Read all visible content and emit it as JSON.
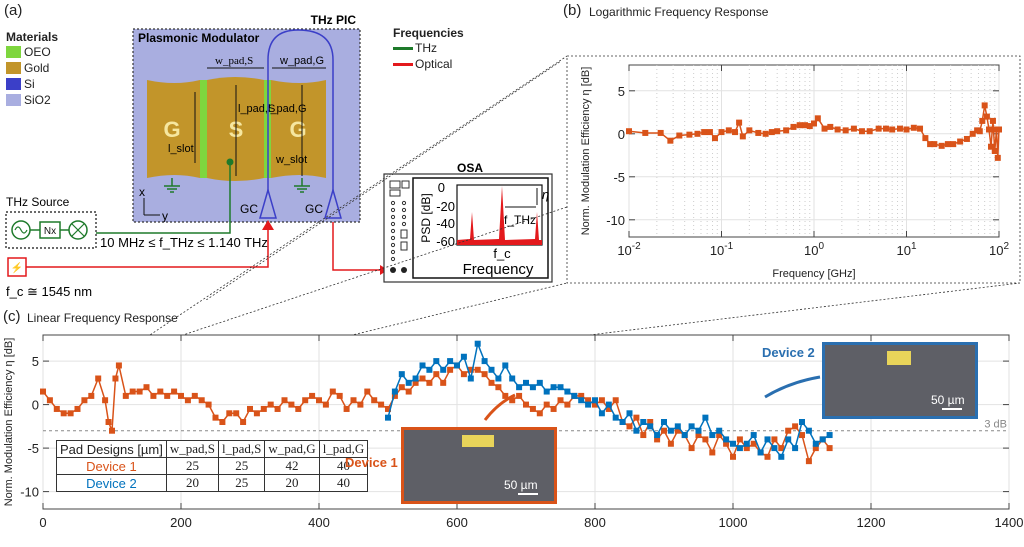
{
  "panel_a": {
    "letter": "(a)",
    "materials_title": "Materials",
    "materials": [
      {
        "name": "OEO",
        "color": "#7ed63e"
      },
      {
        "name": "Gold",
        "color": "#c2952a"
      },
      {
        "name": "Si",
        "color": "#3b3fc8"
      },
      {
        "name": "SiO2",
        "color": "#a9aee0"
      }
    ],
    "frequencies_title": "Frequencies",
    "frequencies": [
      {
        "name": "THz",
        "color": "#1e7a2a"
      },
      {
        "name": "Optical",
        "color": "#e3191c"
      }
    ],
    "pic_label": "THz PIC",
    "modulator_label": "Plasmonic Modulator",
    "electrodes": [
      "G",
      "S",
      "G"
    ],
    "dim_labels": {
      "w_pad_s": "w_pad,S",
      "w_pad_g": "w_pad,G",
      "l_pad_s": "l_pad,S",
      "l_pad_g": "l_pad,G",
      "l_slot": "l_slot",
      "w_slot": "w_slot"
    },
    "gc_label": "GC",
    "axis_x": "x",
    "axis_y": "y",
    "thz_source_label": "THz Source",
    "multiplier_label": "Nx",
    "freq_range": "10 MHz ≤ f_THz ≤ 1.140 THz",
    "carrier_label": "f_c ≅ 1545 nm",
    "osa": {
      "title": "OSA",
      "ylabel": "PSD [dB]",
      "yticks": [
        "0",
        "-20",
        "-40",
        "-60"
      ],
      "xlabel": "Frequency",
      "fc_label": "f_c",
      "fthz_label": "f_THz",
      "eta_label": "η"
    }
  },
  "chart_data": [
    {
      "id": "b",
      "type": "line",
      "title": "Logarithmic Frequency Response",
      "panel_letter": "(b)",
      "xlabel": "Frequency [GHz]",
      "ylabel": "Norm. Modulation Efficiency η [dB]",
      "xscale": "log",
      "xlim": [
        0.01,
        100
      ],
      "ylim": [
        -12,
        8
      ],
      "xticks": [
        0.01,
        0.1,
        1,
        10,
        100
      ],
      "xtick_labels": [
        "10-2",
        "10-1",
        "100",
        "101",
        "102"
      ],
      "yticks": [
        5,
        0,
        -5,
        -10
      ],
      "grid": true,
      "series": [
        {
          "name": "Device 1",
          "color": "#d95319",
          "x": [
            0.01,
            0.015,
            0.022,
            0.028,
            0.035,
            0.045,
            0.055,
            0.065,
            0.075,
            0.085,
            0.1,
            0.12,
            0.14,
            0.155,
            0.17,
            0.2,
            0.25,
            0.3,
            0.35,
            0.4,
            0.5,
            0.6,
            0.7,
            0.8,
            0.9,
            1.0,
            1.1,
            1.3,
            1.5,
            1.8,
            2.2,
            2.7,
            3.3,
            4,
            5,
            6,
            7,
            8.5,
            10,
            12,
            14,
            16,
            18,
            20,
            24,
            28,
            32,
            38,
            45,
            52,
            58,
            62,
            66,
            70,
            74,
            78,
            82,
            86,
            90,
            94,
            97,
            100
          ],
          "y": [
            0.3,
            0.1,
            0.1,
            -0.8,
            -0.2,
            -0.1,
            0.0,
            0.2,
            0.2,
            -0.5,
            0.2,
            0.4,
            0.2,
            1.3,
            -0.3,
            0.4,
            0.1,
            0.0,
            0.2,
            0.3,
            0.4,
            0.8,
            1.0,
            1.0,
            0.9,
            1.2,
            1.8,
            0.6,
            0.8,
            0.5,
            0.4,
            0.6,
            0.3,
            0.3,
            0.6,
            0.6,
            0.5,
            0.6,
            0.5,
            0.7,
            0.6,
            -0.5,
            -1.2,
            -1.2,
            -1.4,
            -1.2,
            -1.2,
            -0.9,
            -0.6,
            0.0,
            0.4,
            0.3,
            1.5,
            3.3,
            2.0,
            0.5,
            -1.5,
            1.5,
            -2.0,
            0.5,
            -2.8,
            0.5
          ]
        }
      ]
    },
    {
      "id": "c",
      "type": "line",
      "title": "Linear Frequency Response",
      "panel_letter": "(c)",
      "xlabel": "Frequency [GHz]",
      "ylabel": "Norm. Modulation Efficiency η [dB]",
      "xlim": [
        0,
        1400
      ],
      "ylim": [
        -12,
        8
      ],
      "xticks": [
        0,
        200,
        400,
        600,
        800,
        1000,
        1200,
        1400
      ],
      "yticks": [
        5,
        0,
        -5,
        -10
      ],
      "grid": true,
      "reference_line": {
        "y": -3,
        "label": "3 dB"
      },
      "annotations": [
        "Device 1",
        "Device 2"
      ],
      "scale_bar_label": "50 µm",
      "series": [
        {
          "name": "Device 1",
          "color": "#d95319",
          "x": [
            0,
            10,
            20,
            30,
            40,
            50,
            60,
            70,
            80,
            90,
            95,
            100,
            105,
            110,
            120,
            130,
            140,
            150,
            160,
            170,
            180,
            190,
            200,
            210,
            220,
            230,
            240,
            250,
            260,
            270,
            280,
            290,
            300,
            310,
            320,
            330,
            340,
            350,
            360,
            370,
            380,
            390,
            400,
            410,
            420,
            430,
            440,
            450,
            460,
            470,
            480,
            490,
            500,
            510,
            520,
            530,
            540,
            550,
            560,
            570,
            580,
            590,
            600,
            610,
            620,
            630,
            640,
            650,
            660,
            670,
            680,
            690,
            700,
            710,
            720,
            730,
            740,
            750,
            760,
            770,
            780,
            790,
            800,
            810,
            820,
            830,
            840,
            850,
            860,
            870,
            880,
            890,
            900,
            910,
            920,
            930,
            940,
            950,
            960,
            970,
            980,
            990,
            1000,
            1010,
            1020,
            1030,
            1040,
            1050,
            1060,
            1070,
            1080,
            1090,
            1100,
            1110,
            1120,
            1130,
            1140
          ],
          "y": [
            1.5,
            0.5,
            -0.5,
            -1.0,
            -1.0,
            -0.5,
            0.5,
            1.0,
            3.0,
            0.5,
            -2.0,
            -3.0,
            3.0,
            4.5,
            1.0,
            1.5,
            1.5,
            2.0,
            1.0,
            1.5,
            1.0,
            1.5,
            1.0,
            0.5,
            1.0,
            0.5,
            0.0,
            -1.5,
            -2.0,
            -1.0,
            -1.0,
            -2.0,
            -0.5,
            -1.0,
            -0.5,
            0.0,
            -0.5,
            0.5,
            0.0,
            -0.5,
            0.5,
            1.0,
            0.5,
            0.0,
            1.5,
            1.0,
            -0.5,
            0.5,
            0.0,
            1.5,
            0.5,
            0.0,
            -0.5,
            1.0,
            2.0,
            1.5,
            2.5,
            3.0,
            2.5,
            3.5,
            2.5,
            4.0,
            4.5,
            3.5,
            4.0,
            4.0,
            3.5,
            2.5,
            2.0,
            1.0,
            0.5,
            1.0,
            0.0,
            -0.5,
            -1.0,
            0.0,
            -0.5,
            0.5,
            0.0,
            1.0,
            1.0,
            0.5,
            0.0,
            0.5,
            -0.5,
            0.5,
            -2.0,
            -2.5,
            -1.5,
            -3.5,
            -2.0,
            -4.0,
            -3.0,
            -4.5,
            -3.0,
            -3.5,
            -5.0,
            -3.5,
            -4.0,
            -5.5,
            -3.5,
            -4.5,
            -6.0,
            -4.0,
            -5.0,
            -4.5,
            -5.5,
            -6.0,
            -4.0,
            -5.0,
            -3.0,
            -2.5,
            -3.5,
            -6.5,
            -5.0,
            -4.0,
            -5.0
          ]
        },
        {
          "name": "Device 2",
          "color": "#0072bd",
          "x": [
            500,
            510,
            520,
            530,
            540,
            550,
            560,
            570,
            580,
            590,
            600,
            610,
            620,
            630,
            640,
            650,
            660,
            670,
            680,
            690,
            700,
            710,
            720,
            730,
            740,
            750,
            760,
            770,
            780,
            790,
            800,
            810,
            820,
            830,
            840,
            850,
            860,
            870,
            880,
            890,
            900,
            910,
            920,
            930,
            940,
            950,
            960,
            970,
            980,
            990,
            1000,
            1010,
            1020,
            1030,
            1040,
            1050,
            1060,
            1070,
            1080,
            1090,
            1100,
            1110,
            1120,
            1130,
            1140
          ],
          "y": [
            -1.5,
            1.5,
            3.5,
            2.5,
            3.0,
            4.5,
            4.0,
            5.0,
            4.0,
            5.0,
            4.5,
            5.5,
            3.0,
            7.0,
            5.0,
            4.0,
            3.0,
            4.5,
            3.0,
            2.0,
            2.5,
            2.0,
            2.5,
            1.5,
            2.0,
            2.0,
            1.5,
            1.0,
            0.5,
            0.0,
            0.5,
            -1.0,
            0.0,
            -1.5,
            -2.0,
            -1.0,
            -3.0,
            -2.0,
            -2.5,
            -3.5,
            -2.0,
            -3.0,
            -2.5,
            -3.5,
            -2.5,
            -3.0,
            -1.5,
            -3.5,
            -3.0,
            -4.0,
            -4.5,
            -5.0,
            -4.5,
            -3.5,
            -5.5,
            -4.0,
            -5.0,
            -6.0,
            -4.0,
            -5.0,
            -2.0,
            -3.0,
            -4.5,
            -4.0,
            -3.5
          ]
        }
      ]
    }
  ],
  "pad_table": {
    "headers": [
      "Pad Designs [µm]",
      "w_pad,S",
      "l_pad,S",
      "w_pad,G",
      "l_pad,G"
    ],
    "rows": [
      {
        "name": "Device 1",
        "color": "#d95319",
        "values": [
          "25",
          "25",
          "42",
          "40"
        ]
      },
      {
        "name": "Device 2",
        "color": "#0072bd",
        "values": [
          "20",
          "25",
          "20",
          "40"
        ]
      }
    ]
  }
}
